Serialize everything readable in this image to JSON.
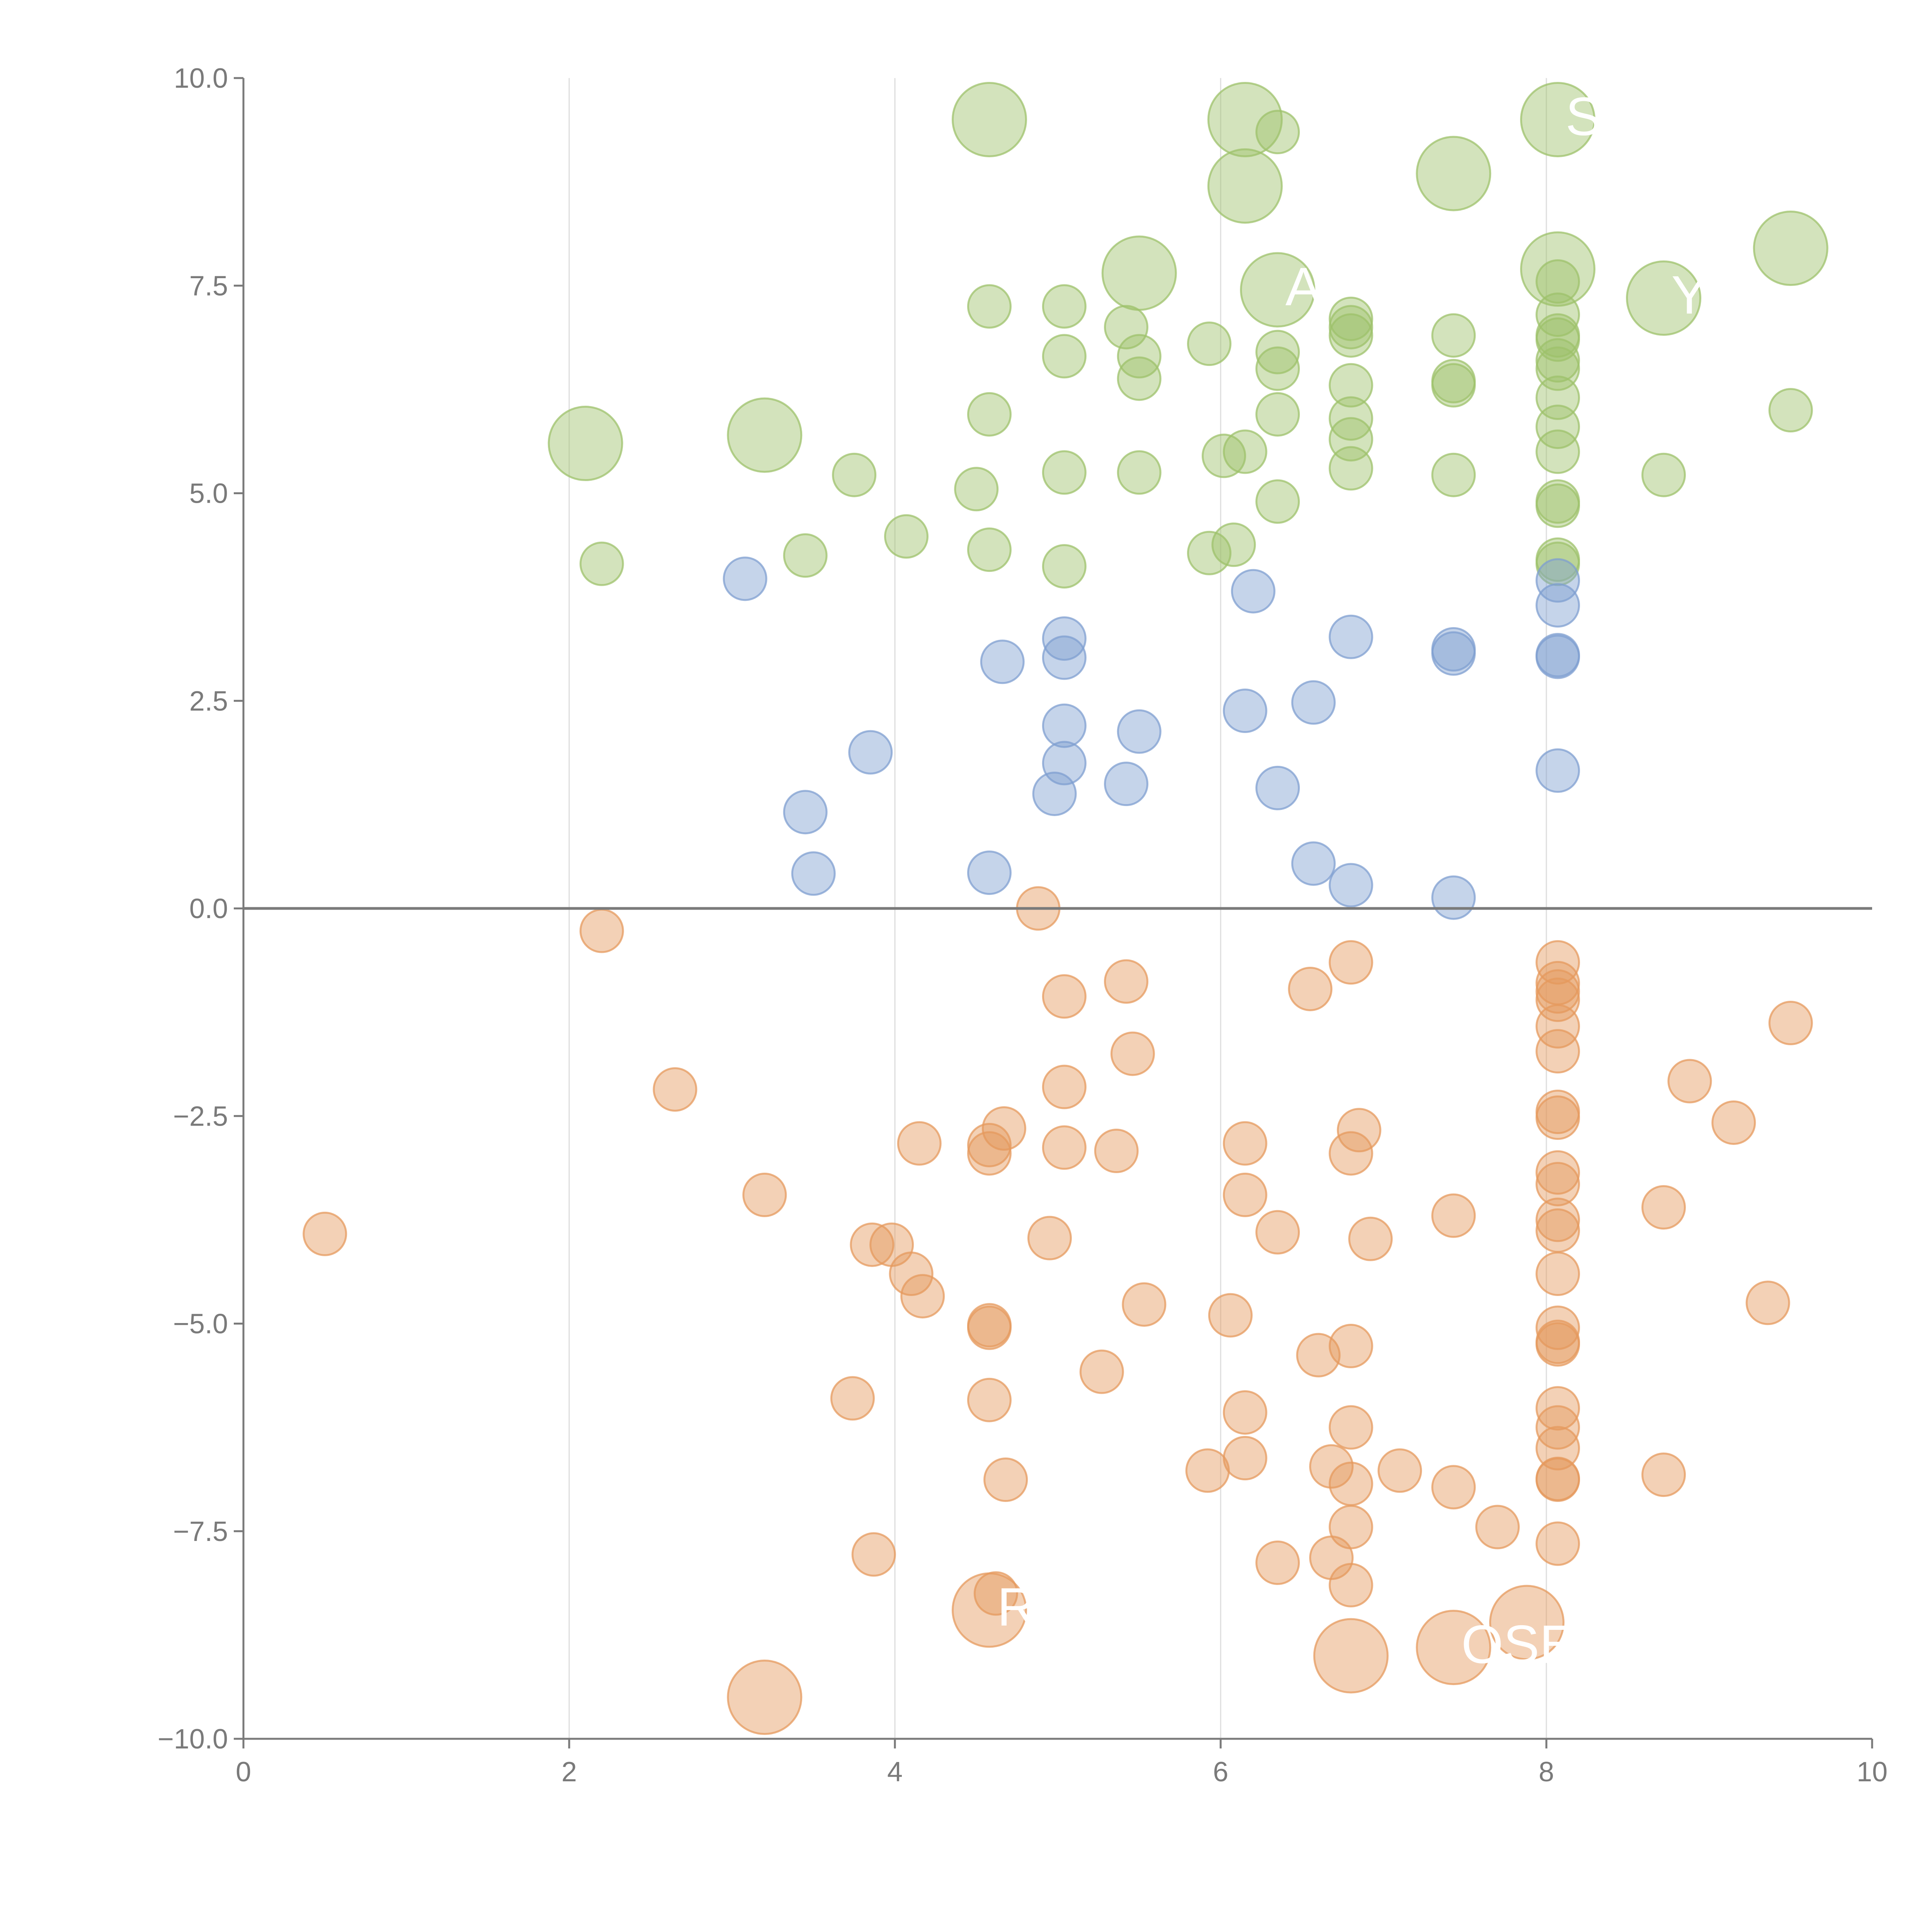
{
  "chart_data": {
    "type": "scatter",
    "title": "",
    "xlabel": "",
    "ylabel": "",
    "xlim": [
      0,
      10
    ],
    "ylim": [
      -10,
      10
    ],
    "x_ticks": [
      "0",
      "2",
      "4",
      "6",
      "8",
      "10"
    ],
    "y_ticks": [
      "−10.0",
      "−7.5",
      "−5.0",
      "−2.5",
      "0.0",
      "2.5",
      "5.0",
      "7.5",
      "10.0"
    ],
    "vertical_gridlines_at": [
      2,
      4,
      6,
      8
    ],
    "zero_line": true,
    "colors": {
      "green": "#9dc26b",
      "blue": "#7f9fd0",
      "orange": "#e59a5e",
      "axis": "#7a7a7a",
      "grid": "#dddddd"
    },
    "size_scale": {
      "small": 1,
      "large": 2
    },
    "series": [
      {
        "color": "green",
        "points": [
          [
            4.58,
            9.5,
            2
          ],
          [
            6.15,
            9.5,
            2
          ],
          [
            6.35,
            9.35,
            1
          ],
          [
            8.07,
            9.5,
            2
          ],
          [
            7.43,
            8.85,
            2
          ],
          [
            6.15,
            8.7,
            2
          ],
          [
            9.5,
            7.95,
            2
          ],
          [
            5.5,
            7.65,
            2
          ],
          [
            8.07,
            7.7,
            2
          ],
          [
            6.35,
            7.45,
            2
          ],
          [
            8.72,
            7.35,
            2
          ],
          [
            3.2,
            5.7,
            2
          ],
          [
            2.1,
            5.6,
            2
          ],
          [
            4.58,
            7.25,
            1
          ],
          [
            5.04,
            7.25,
            1
          ],
          [
            5.42,
            7.0,
            1
          ],
          [
            5.5,
            6.65,
            1
          ],
          [
            5.04,
            6.65,
            1
          ],
          [
            5.5,
            6.38,
            1
          ],
          [
            5.93,
            6.8,
            1
          ],
          [
            6.35,
            6.7,
            1
          ],
          [
            6.35,
            6.5,
            1
          ],
          [
            6.35,
            5.95,
            1
          ],
          [
            6.8,
            7.0,
            1
          ],
          [
            6.8,
            6.9,
            1
          ],
          [
            6.8,
            7.1,
            1
          ],
          [
            6.8,
            6.3,
            1
          ],
          [
            6.8,
            5.9,
            1
          ],
          [
            6.8,
            5.65,
            1
          ],
          [
            6.8,
            5.3,
            1
          ],
          [
            7.43,
            6.9,
            1
          ],
          [
            7.43,
            6.3,
            1
          ],
          [
            7.43,
            6.35,
            1
          ],
          [
            7.43,
            5.22,
            1
          ],
          [
            8.07,
            7.55,
            1
          ],
          [
            8.07,
            7.15,
            1
          ],
          [
            8.07,
            6.85,
            1
          ],
          [
            8.07,
            6.9,
            1
          ],
          [
            8.07,
            6.6,
            1
          ],
          [
            8.07,
            6.5,
            1
          ],
          [
            8.07,
            6.15,
            1
          ],
          [
            8.07,
            5.8,
            1
          ],
          [
            8.07,
            5.5,
            1
          ],
          [
            8.07,
            4.9,
            1
          ],
          [
            8.07,
            4.85,
            1
          ],
          [
            8.07,
            4.2,
            1
          ],
          [
            8.07,
            4.15,
            1
          ],
          [
            9.5,
            6.0,
            1
          ],
          [
            8.72,
            5.22,
            1
          ],
          [
            4.58,
            5.95,
            1
          ],
          [
            5.04,
            5.25,
            1
          ],
          [
            5.5,
            5.25,
            1
          ],
          [
            6.15,
            5.5,
            1
          ],
          [
            6.02,
            5.45,
            1
          ],
          [
            6.35,
            4.9,
            1
          ],
          [
            5.93,
            4.28,
            1
          ],
          [
            6.08,
            4.38,
            1
          ],
          [
            4.5,
            5.05,
            1
          ],
          [
            4.58,
            4.32,
            1
          ],
          [
            5.04,
            4.12,
            1
          ],
          [
            4.07,
            4.48,
            1
          ],
          [
            3.45,
            4.25,
            1
          ],
          [
            3.75,
            5.22,
            1
          ],
          [
            2.2,
            4.15,
            1
          ]
        ]
      },
      {
        "color": "blue",
        "points": [
          [
            3.08,
            3.97,
            1
          ],
          [
            6.2,
            3.82,
            1
          ],
          [
            4.66,
            2.97,
            1
          ],
          [
            5.04,
            3.25,
            1
          ],
          [
            5.04,
            3.02,
            1
          ],
          [
            6.8,
            3.27,
            1
          ],
          [
            7.43,
            3.12,
            1
          ],
          [
            7.43,
            3.07,
            1
          ],
          [
            8.07,
            3.95,
            1
          ],
          [
            8.07,
            3.65,
            1
          ],
          [
            8.07,
            3.03,
            1
          ],
          [
            8.07,
            3.05,
            1
          ],
          [
            8.07,
            1.66,
            1
          ],
          [
            3.85,
            1.88,
            1
          ],
          [
            5.04,
            2.2,
            1
          ],
          [
            5.5,
            2.13,
            1
          ],
          [
            6.15,
            2.38,
            1
          ],
          [
            6.57,
            2.48,
            1
          ],
          [
            5.04,
            1.75,
            1
          ],
          [
            4.98,
            1.38,
            1
          ],
          [
            5.42,
            1.5,
            1
          ],
          [
            6.35,
            1.45,
            1
          ],
          [
            3.45,
            1.16,
            1
          ],
          [
            3.5,
            0.42,
            1
          ],
          [
            4.58,
            0.43,
            1
          ],
          [
            6.57,
            0.54,
            1
          ],
          [
            6.8,
            0.28,
            1
          ],
          [
            7.43,
            0.13,
            1
          ]
        ]
      },
      {
        "color": "orange",
        "points": [
          [
            4.88,
            0.0,
            1
          ],
          [
            2.2,
            -0.27,
            1
          ],
          [
            5.42,
            -0.88,
            1
          ],
          [
            5.04,
            -1.06,
            1
          ],
          [
            6.55,
            -0.97,
            1
          ],
          [
            6.8,
            -0.65,
            1
          ],
          [
            8.07,
            -0.65,
            1
          ],
          [
            8.07,
            -0.9,
            1
          ],
          [
            8.07,
            -1.0,
            1
          ],
          [
            8.07,
            -1.1,
            1
          ],
          [
            8.07,
            -1.42,
            1
          ],
          [
            8.07,
            -1.72,
            1
          ],
          [
            9.5,
            -1.38,
            1
          ],
          [
            5.46,
            -1.75,
            1
          ],
          [
            2.65,
            -2.18,
            1
          ],
          [
            5.04,
            -2.15,
            1
          ],
          [
            8.88,
            -2.08,
            1
          ],
          [
            9.15,
            -2.58,
            1
          ],
          [
            8.07,
            -2.45,
            1
          ],
          [
            8.07,
            -2.52,
            1
          ],
          [
            4.67,
            -2.65,
            1
          ],
          [
            4.15,
            -2.83,
            1
          ],
          [
            4.58,
            -2.85,
            1
          ],
          [
            4.58,
            -2.95,
            1
          ],
          [
            5.04,
            -2.88,
            1
          ],
          [
            5.36,
            -2.92,
            1
          ],
          [
            6.15,
            -2.83,
            1
          ],
          [
            6.85,
            -2.67,
            1
          ],
          [
            6.8,
            -2.95,
            1
          ],
          [
            3.2,
            -3.45,
            1
          ],
          [
            6.15,
            -3.45,
            1
          ],
          [
            8.07,
            -3.18,
            1
          ],
          [
            8.07,
            -3.32,
            1
          ],
          [
            8.07,
            -3.75,
            1
          ],
          [
            8.07,
            -3.88,
            1
          ],
          [
            7.43,
            -3.7,
            1
          ],
          [
            8.72,
            -3.6,
            1
          ],
          [
            0.5,
            -3.92,
            1
          ],
          [
            3.86,
            -4.05,
            1
          ],
          [
            3.98,
            -4.05,
            1
          ],
          [
            4.95,
            -3.97,
            1
          ],
          [
            6.35,
            -3.9,
            1
          ],
          [
            6.92,
            -3.98,
            1
          ],
          [
            4.1,
            -4.4,
            1
          ],
          [
            4.17,
            -4.67,
            1
          ],
          [
            8.07,
            -4.4,
            1
          ],
          [
            5.53,
            -4.77,
            1
          ],
          [
            6.06,
            -4.9,
            1
          ],
          [
            9.36,
            -4.75,
            1
          ],
          [
            4.58,
            -5.02,
            1
          ],
          [
            4.58,
            -5.05,
            1
          ],
          [
            8.07,
            -5.05,
            1
          ],
          [
            8.07,
            -5.22,
            1
          ],
          [
            8.07,
            -5.25,
            1
          ],
          [
            6.6,
            -5.38,
            1
          ],
          [
            6.8,
            -5.27,
            1
          ],
          [
            5.27,
            -5.58,
            1
          ],
          [
            3.74,
            -5.9,
            1
          ],
          [
            4.58,
            -5.92,
            1
          ],
          [
            6.15,
            -6.07,
            1
          ],
          [
            8.07,
            -6.02,
            1
          ],
          [
            8.07,
            -6.25,
            1
          ],
          [
            6.8,
            -6.25,
            1
          ],
          [
            6.15,
            -6.62,
            1
          ],
          [
            8.07,
            -6.5,
            1
          ],
          [
            5.92,
            -6.77,
            1
          ],
          [
            6.68,
            -6.72,
            1
          ],
          [
            7.1,
            -6.77,
            1
          ],
          [
            4.68,
            -6.88,
            1
          ],
          [
            6.8,
            -6.93,
            1
          ],
          [
            7.43,
            -6.97,
            1
          ],
          [
            8.07,
            -6.87,
            1
          ],
          [
            8.07,
            -6.88,
            1
          ],
          [
            8.72,
            -6.82,
            1
          ],
          [
            6.8,
            -7.45,
            1
          ],
          [
            7.7,
            -7.45,
            1
          ],
          [
            8.07,
            -7.65,
            1
          ],
          [
            3.87,
            -7.78,
            1
          ],
          [
            6.35,
            -7.88,
            1
          ],
          [
            6.68,
            -7.82,
            1
          ],
          [
            6.8,
            -8.15,
            1
          ],
          [
            4.62,
            -8.25,
            1
          ],
          [
            4.58,
            -8.45,
            2
          ],
          [
            7.88,
            -8.6,
            2
          ],
          [
            7.43,
            -8.9,
            2
          ],
          [
            6.8,
            -9.0,
            2
          ],
          [
            3.2,
            -9.5,
            2
          ]
        ]
      }
    ],
    "annotations": [
      {
        "text": "S",
        "x": 8.07,
        "y": 9.5
      },
      {
        "text": "A",
        "x": 6.35,
        "y": 7.45
      },
      {
        "text": "YG",
        "x": 8.72,
        "y": 7.35
      },
      {
        "text": "R",
        "x": 4.58,
        "y": -8.45
      },
      {
        "text": "OSE",
        "x": 7.43,
        "y": -8.9
      }
    ]
  }
}
